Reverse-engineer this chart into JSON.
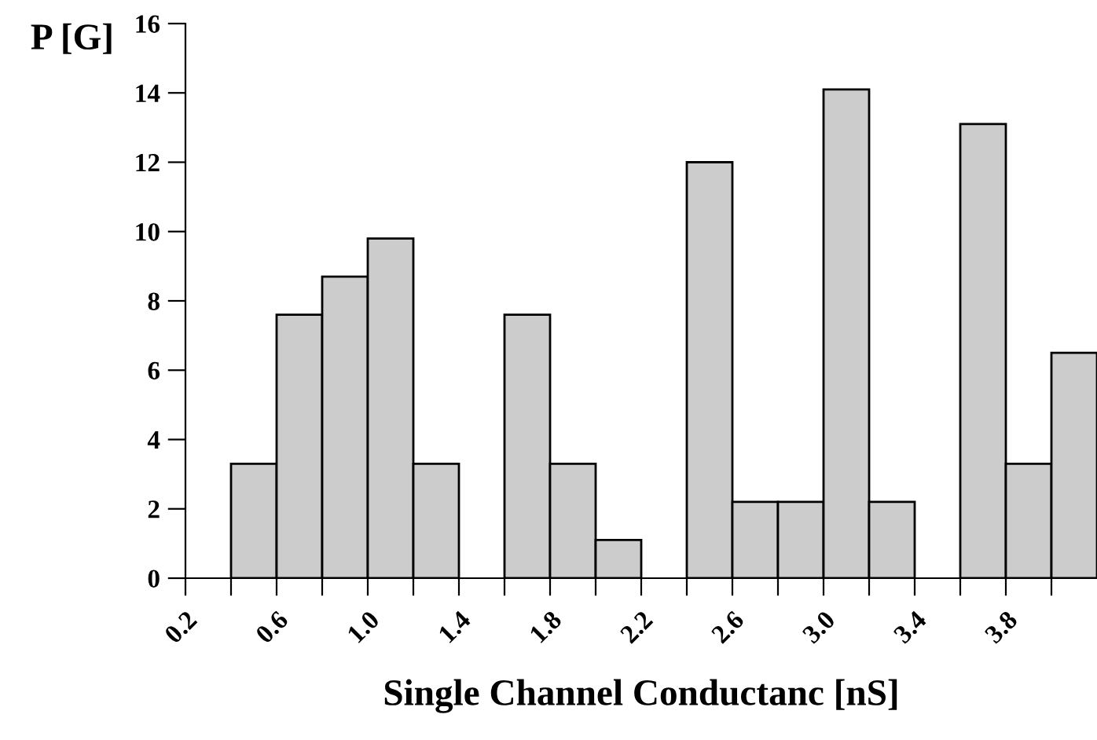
{
  "chart_data": {
    "type": "histogram",
    "xlabel": "Single Channel Conductanc [nS]",
    "ylabel": "P [G]",
    "bins": [
      0.4,
      0.6,
      0.8,
      1.0,
      1.2,
      1.4,
      1.6,
      1.8,
      2.0,
      2.2,
      2.4,
      2.6,
      2.8,
      3.0,
      3.2,
      3.4,
      3.6,
      3.8,
      4.0,
      4.2
    ],
    "values": [
      3.3,
      7.6,
      8.7,
      9.8,
      3.3,
      null,
      7.6,
      3.3,
      1.1,
      null,
      12.0,
      2.2,
      2.2,
      14.1,
      2.2,
      null,
      13.1,
      3.3,
      6.5
    ],
    "color": "#cccccc",
    "xlim": [
      0.2,
      4.2
    ],
    "xticks": [
      0.2,
      {
        "value": 0.4,
        "label": null
      },
      0.6,
      {
        "value": 0.8,
        "label": null
      },
      {
        "value": 1.0,
        "label": "1.0"
      },
      {
        "value": 1.2,
        "label": null
      },
      1.4,
      {
        "value": 1.6,
        "label": null
      },
      1.8,
      {
        "value": 2.0,
        "label": null
      },
      2.2,
      {
        "value": 2.4,
        "label": null
      },
      2.6,
      {
        "value": 2.8,
        "label": null
      },
      {
        "value": 3.0,
        "label": "3.0"
      },
      {
        "value": 3.2,
        "label": null
      },
      3.4,
      {
        "value": 3.6,
        "label": null
      },
      3.8,
      {
        "value": 4.0,
        "label": null
      }
    ],
    "ylim": [
      0,
      16
    ],
    "yticks": [
      0,
      2,
      4,
      6,
      8,
      10,
      12,
      14,
      16
    ],
    "grid": false
  }
}
